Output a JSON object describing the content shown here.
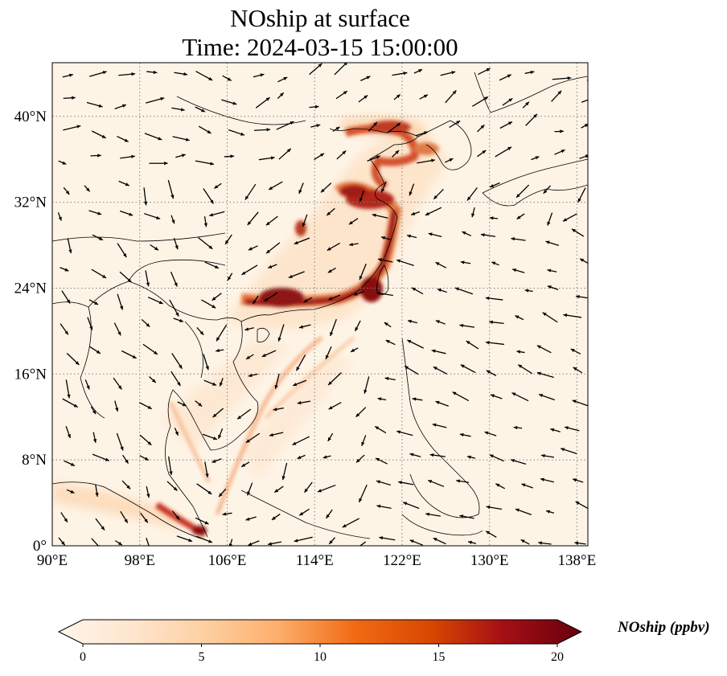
{
  "title": {
    "line1": "NOship at surface",
    "line2": "Time: 2024-03-15 15:00:00"
  },
  "map": {
    "lon_range": [
      90,
      139
    ],
    "lat_range": [
      0,
      45
    ],
    "grid": "dotted",
    "lon_ticks": [
      {
        "value": 90,
        "label": "90°E"
      },
      {
        "value": 98,
        "label": "98°E"
      },
      {
        "value": 106,
        "label": "106°E"
      },
      {
        "value": 114,
        "label": "114°E"
      },
      {
        "value": 122,
        "label": "122°E"
      },
      {
        "value": 130,
        "label": "130°E"
      },
      {
        "value": 138,
        "label": "138°E"
      }
    ],
    "lat_ticks": [
      {
        "value": 0,
        "label": "0°"
      },
      {
        "value": 8,
        "label": "8°N"
      },
      {
        "value": 16,
        "label": "16°N"
      },
      {
        "value": 24,
        "label": "24°N"
      },
      {
        "value": 32,
        "label": "32°N"
      },
      {
        "value": 40,
        "label": "40°N"
      }
    ]
  },
  "colorbar": {
    "label": "NOship (ppbv)",
    "min": 0,
    "max": 20,
    "ticks": [
      {
        "value": 0,
        "label": "0"
      },
      {
        "value": 5,
        "label": "5"
      },
      {
        "value": 10,
        "label": "10"
      },
      {
        "value": 15,
        "label": "15"
      },
      {
        "value": 20,
        "label": "20"
      }
    ],
    "colors": [
      "#fff5eb",
      "#fee6ce",
      "#fdd0a2",
      "#fdae6b",
      "#f16913",
      "#d94801",
      "#a50f15",
      "#67000d"
    ]
  }
}
